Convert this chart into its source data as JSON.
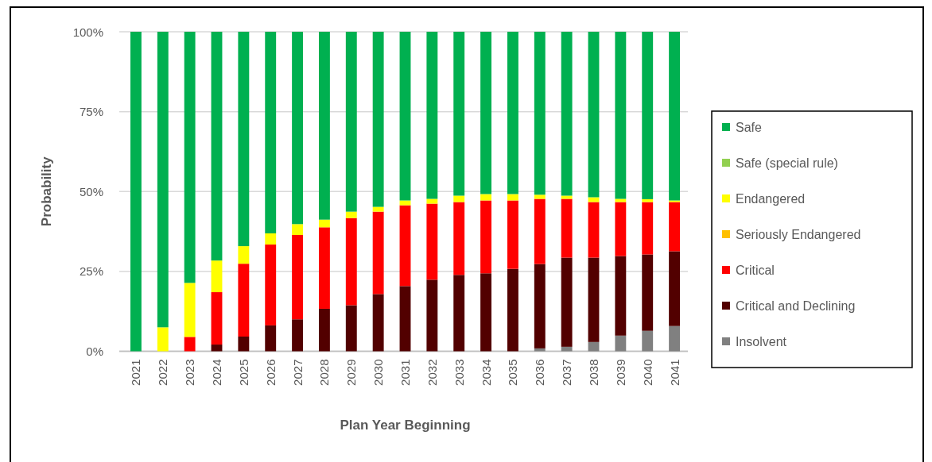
{
  "chart_data": {
    "type": "bar",
    "stacked": true,
    "xlabel": "Plan Year Beginning",
    "ylabel": "Probability",
    "categories": [
      "2021",
      "2022",
      "2023",
      "2024",
      "2025",
      "2026",
      "2027",
      "2028",
      "2029",
      "2030",
      "2031",
      "2032",
      "2033",
      "2034",
      "2035",
      "2036",
      "2037",
      "2038",
      "2039",
      "2040",
      "2041"
    ],
    "ylim": [
      0,
      100
    ],
    "yticks": [
      {
        "value": 0,
        "label": "0%"
      },
      {
        "value": 25,
        "label": "25%"
      },
      {
        "value": 50,
        "label": "50%"
      },
      {
        "value": 75,
        "label": "75%"
      },
      {
        "value": 100,
        "label": "100%"
      }
    ],
    "grid": "y",
    "legend": "right",
    "series": [
      {
        "name": "Insolvent",
        "color": "#808080",
        "values": [
          0,
          0,
          0,
          0,
          0,
          0,
          0,
          0,
          0,
          0,
          0,
          0,
          0,
          0,
          0,
          0.9,
          1.4,
          2.9,
          4.9,
          6.4,
          7.9
        ]
      },
      {
        "name": "Critical and Declining",
        "color": "#520000",
        "values": [
          0,
          0,
          0,
          2.1,
          4.6,
          8.1,
          10.0,
          13.3,
          14.4,
          17.9,
          20.4,
          22.4,
          23.9,
          24.4,
          25.8,
          26.4,
          27.9,
          26.4,
          24.9,
          23.9,
          23.4
        ]
      },
      {
        "name": "Critical",
        "color": "#ff0000",
        "values": [
          0,
          0,
          4.5,
          16.4,
          22.8,
          25.3,
          26.4,
          25.5,
          27.3,
          25.8,
          25.3,
          23.8,
          22.8,
          22.8,
          21.4,
          20.4,
          18.4,
          17.4,
          16.9,
          16.4,
          15.4
        ]
      },
      {
        "name": "Seriously Endangered",
        "color": "#ffc000",
        "values": [
          0,
          0,
          0,
          0,
          0,
          0,
          0,
          0,
          0,
          0,
          0,
          0,
          0,
          0,
          0,
          0,
          0,
          0,
          0,
          0,
          0
        ]
      },
      {
        "name": "Endangered",
        "color": "#ffff00",
        "values": [
          0,
          7.5,
          16.9,
          9.9,
          5.5,
          3.5,
          3.4,
          2.4,
          2.0,
          1.5,
          1.5,
          1.5,
          2.0,
          2.0,
          2.0,
          1.3,
          1.0,
          1.5,
          1.0,
          0.9,
          0.5
        ]
      },
      {
        "name": "Safe (special rule)",
        "color": "#92d050",
        "values": [
          0,
          0,
          0,
          0,
          0,
          0,
          0,
          0,
          0,
          0,
          0,
          0,
          0,
          0,
          0,
          0,
          0,
          0,
          0,
          0,
          0
        ]
      },
      {
        "name": "Safe",
        "color": "#00b050",
        "values": [
          100,
          92.5,
          78.6,
          71.6,
          67.1,
          63.1,
          60.2,
          58.8,
          56.3,
          54.8,
          52.8,
          52.3,
          51.3,
          50.8,
          50.8,
          51.0,
          51.3,
          51.8,
          52.3,
          52.4,
          52.8
        ]
      }
    ]
  }
}
